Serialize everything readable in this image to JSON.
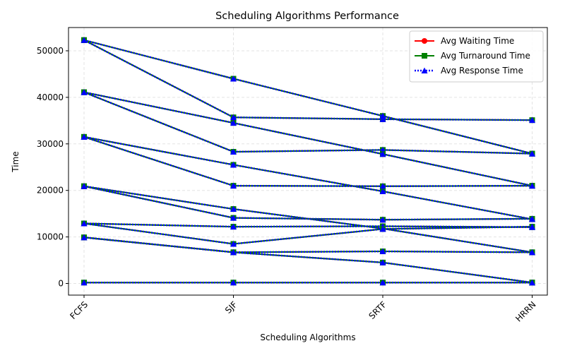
{
  "chart_data": {
    "type": "line",
    "title": "Scheduling Algorithms Performance",
    "xlabel": "Scheduling Algorithms",
    "ylabel": "Time",
    "categories": [
      "FCFS",
      "SJF",
      "SRTF",
      "HRRN"
    ],
    "ylim": [
      -2500,
      55000
    ],
    "yticks": [
      0,
      10000,
      20000,
      30000,
      40000,
      50000
    ],
    "grid": true,
    "legend_position": "top-right",
    "legend": [
      "Avg Waiting Time",
      "Avg Turnaround Time",
      "Avg Response Time"
    ],
    "series_styles": [
      {
        "name": "Avg Waiting Time",
        "color": "#ff0000",
        "marker": "circle",
        "line": "solid"
      },
      {
        "name": "Avg Turnaround Time",
        "color": "#008000",
        "marker": "square",
        "line": "solid"
      },
      {
        "name": "Avg Response Time",
        "color": "#0000ff",
        "marker": "triangle",
        "line": "dotted"
      }
    ],
    "cases": [
      [
        52300,
        35700,
        35300,
        35100
      ],
      [
        52300,
        44000,
        36000,
        27900
      ],
      [
        41100,
        28300,
        28700,
        27900
      ],
      [
        41100,
        34500,
        27800,
        21000
      ],
      [
        31500,
        21000,
        20900,
        21000
      ],
      [
        31500,
        25500,
        19800,
        13800
      ],
      [
        20900,
        14100,
        13700,
        13900
      ],
      [
        20900,
        16000,
        11800,
        6700
      ],
      [
        12900,
        12200,
        12300,
        12100
      ],
      [
        12900,
        8500,
        11700,
        12200
      ],
      [
        9900,
        6700,
        6900,
        6700
      ],
      [
        9900,
        6700,
        4500,
        200
      ],
      [
        200,
        200,
        200,
        200
      ]
    ]
  }
}
